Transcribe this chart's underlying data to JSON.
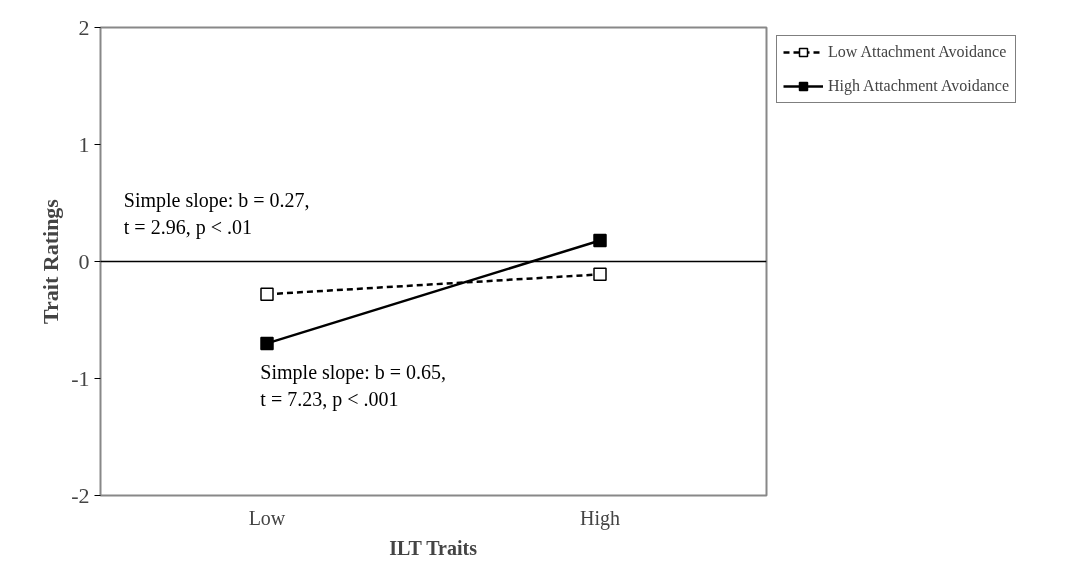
{
  "chart_data": {
    "type": "line",
    "xlabel": "ILT Traits",
    "ylabel": "Trait Ratings",
    "categories": [
      "Low",
      "High"
    ],
    "series": [
      {
        "name": "Low Attachment Avoidance",
        "color": "#000000",
        "values": [
          -0.28,
          -0.11
        ],
        "line_style": "dashed"
      },
      {
        "name": "High Attachment Avoidance",
        "color": "#000000",
        "values": [
          -0.7,
          0.18
        ],
        "line_style": "solid"
      }
    ],
    "ref_lines": [
      {
        "axis": "y",
        "value": 0
      }
    ],
    "marker": "square",
    "ylim": [
      -2,
      2
    ],
    "yticks": [
      -2,
      -1,
      0,
      1,
      2
    ],
    "grid": false,
    "legend": "top right",
    "annotations": [
      "Simple slope: b = 0.27,\nt = 2.96, p < .01",
      "Simple slope: b = 0.65,\nt = 7.23, p < .001"
    ]
  }
}
